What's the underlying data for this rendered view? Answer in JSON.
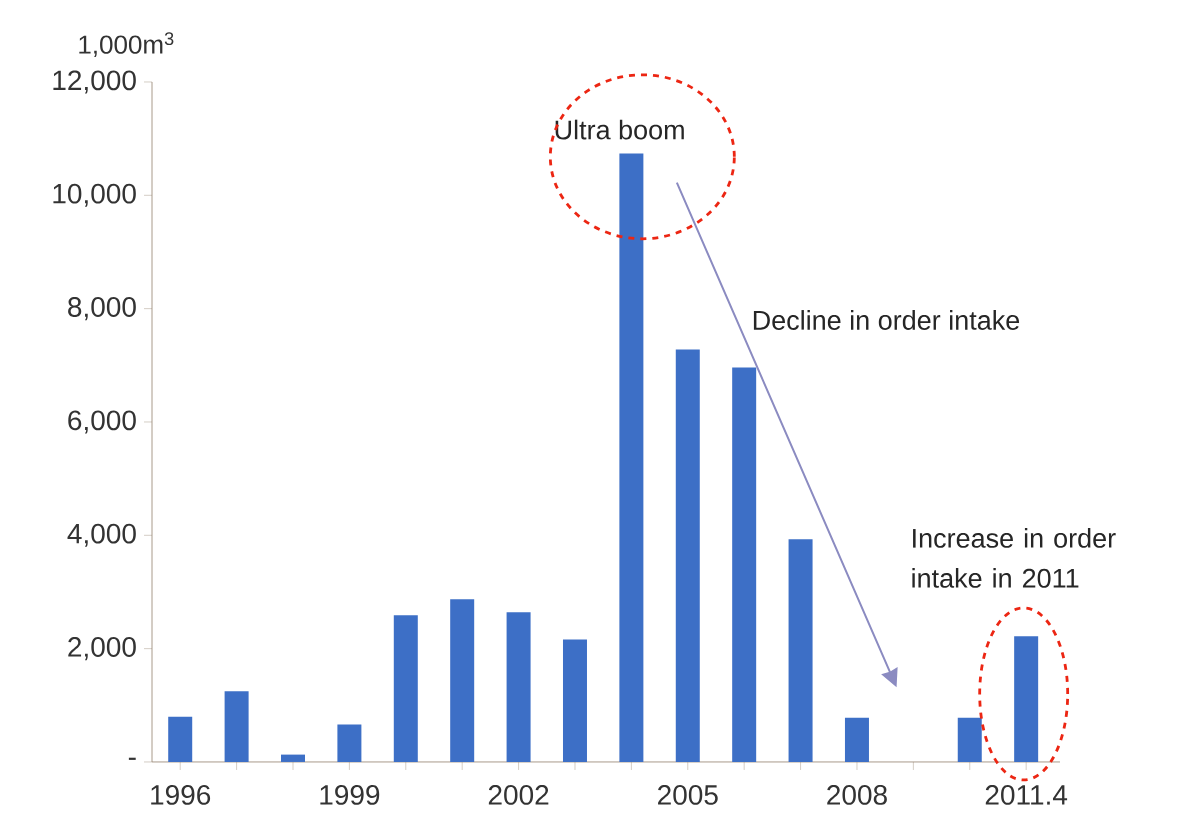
{
  "chart_data": {
    "type": "bar",
    "ylabel": "1,000m$^{3}$",
    "categories": [
      "1996",
      null,
      null,
      "1999",
      null,
      null,
      "2002",
      null,
      null,
      "2005",
      null,
      null,
      "2008",
      null,
      null,
      "2011.4"
    ],
    "values": [
      800,
      1250,
      130,
      660,
      2590,
      2870,
      2640,
      2160,
      10740,
      7280,
      6960,
      3930,
      780,
      null,
      780,
      2220
    ],
    "color": "#3d6fc6",
    "ylim": [
      0,
      12000
    ],
    "yticks": [
      {
        "value": 0,
        "label": "-"
      },
      {
        "value": 2000,
        "label": "2,000"
      },
      {
        "value": 4000,
        "label": "4,000"
      },
      {
        "value": 6000,
        "label": "6,000"
      },
      {
        "value": 8000,
        "label": "8,000"
      },
      {
        "value": 10000,
        "label": "10,000"
      },
      {
        "value": 12000,
        "label": "12,000"
      }
    ],
    "annotations": [
      "Ultra boom",
      "Decline in order intake",
      "Increase in order intake in 2011"
    ]
  }
}
